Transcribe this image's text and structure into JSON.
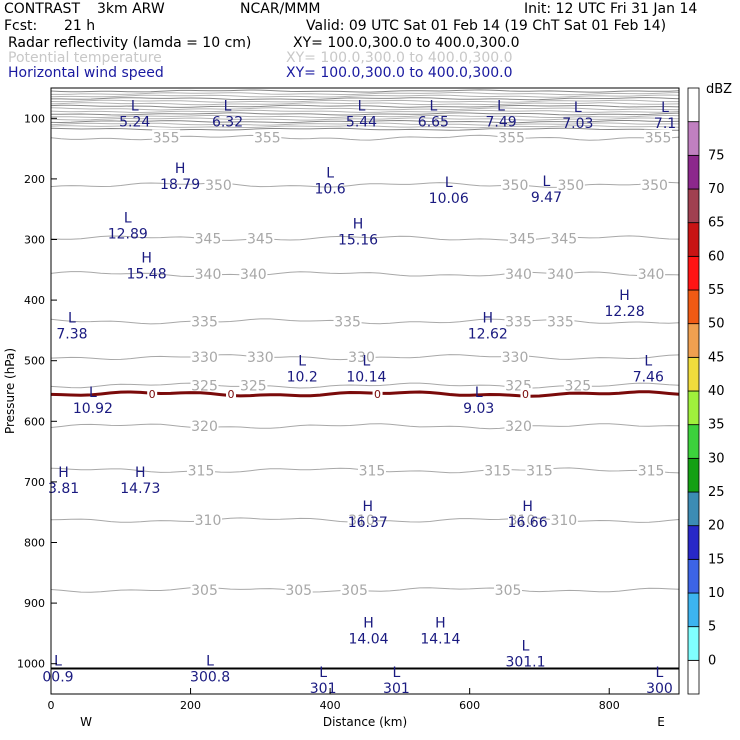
{
  "header": {
    "model": "CONTRAST",
    "config": "3km ARW",
    "org": "NCAR/MMM",
    "init_text": "Init: 12 UTC Fri 31 Jan 14",
    "fcst_label": "Fcst:",
    "fcst_value": "21 h",
    "valid_text": "Valid: 09 UTC Sat 01 Feb 14 (19 ChT Sat 01 Feb 14)",
    "fields": [
      {
        "name": "Radar reflectivity (lamda = 10 cm)",
        "xy": "XY= 100.0,300.0 to 400.0,300.0"
      },
      {
        "name": "Potential temperature",
        "xy": "XY= 100.0,300.0 to 400.0,300.0"
      },
      {
        "name": "Horizontal wind speed",
        "xy": "XY= 100.0,300.0 to 400.0,300.0"
      }
    ]
  },
  "colors": {
    "theta": "#a8a8a8",
    "wind": "#1a1a80",
    "freezing": "#7a0a0a",
    "surface": "#000000"
  },
  "chart_data": {
    "type": "cross-section",
    "xlabel": "Distance (km)",
    "ylabel": "Pressure (hPa)",
    "xlim": [
      0,
      900
    ],
    "ylim": [
      1050,
      50
    ],
    "x_ticks": [
      0,
      200,
      400,
      600,
      800
    ],
    "x_tick_labels": [
      "0",
      "200",
      "400",
      "600",
      "800"
    ],
    "y_ticks": [
      100,
      200,
      300,
      400,
      500,
      600,
      700,
      800,
      900,
      1000
    ],
    "y_tick_labels": [
      "100",
      "200",
      "300",
      "400",
      "500",
      "600",
      "700",
      "800",
      "900",
      "1000"
    ],
    "direction_labels": {
      "left": "W",
      "right": "E"
    },
    "colorbar": {
      "unit": "dBZ",
      "levels": [
        "0",
        "5",
        "10",
        "15",
        "20",
        "25",
        "30",
        "35",
        "40",
        "45",
        "50",
        "55",
        "60",
        "65",
        "70",
        "75"
      ],
      "colors": [
        "#ffffff",
        "#80ffff",
        "#3cb4f0",
        "#3c64e6",
        "#2828c8",
        "#3c8cb4",
        "#14a014",
        "#3cd23c",
        "#a0f03c",
        "#f0dc3c",
        "#f0a050",
        "#f05a14",
        "#ff1414",
        "#c81414",
        "#a04050",
        "#8c288c",
        "#c080c0",
        "#ffffff"
      ]
    },
    "theta_contours": [
      {
        "value": 355,
        "p": 132,
        "labels": [
          {
            "text": "355",
            "x": 165
          },
          {
            "text": "355",
            "x": 310
          },
          {
            "text": "355",
            "x": 660
          },
          {
            "text": "355",
            "x": 870
          }
        ]
      },
      {
        "value": 350,
        "p": 210,
        "labels": [
          {
            "text": "350",
            "x": 240
          },
          {
            "text": "350",
            "x": 665
          },
          {
            "text": "350",
            "x": 745
          },
          {
            "text": "350",
            "x": 865
          }
        ]
      },
      {
        "value": 345,
        "p": 298,
        "labels": [
          {
            "text": "345",
            "x": 225
          },
          {
            "text": "345",
            "x": 300
          },
          {
            "text": "345",
            "x": 675
          },
          {
            "text": "345",
            "x": 735
          }
        ]
      },
      {
        "value": 340,
        "p": 357,
        "labels": [
          {
            "text": "340",
            "x": 225
          },
          {
            "text": "340",
            "x": 290
          },
          {
            "text": "340",
            "x": 670
          },
          {
            "text": "340",
            "x": 730
          },
          {
            "text": "340",
            "x": 860
          }
        ]
      },
      {
        "value": 335,
        "p": 435,
        "labels": [
          {
            "text": "335",
            "x": 220
          },
          {
            "text": "335",
            "x": 425
          },
          {
            "text": "335",
            "x": 670
          },
          {
            "text": "335",
            "x": 730
          }
        ]
      },
      {
        "value": 330,
        "p": 494,
        "labels": [
          {
            "text": "330",
            "x": 220
          },
          {
            "text": "330",
            "x": 300
          },
          {
            "text": "330",
            "x": 445
          },
          {
            "text": "330",
            "x": 665
          }
        ]
      },
      {
        "value": 325,
        "p": 541,
        "labels": [
          {
            "text": "325",
            "x": 220
          },
          {
            "text": "325",
            "x": 290
          },
          {
            "text": "325",
            "x": 670
          },
          {
            "text": "325",
            "x": 755
          }
        ]
      },
      {
        "value": 320,
        "p": 608,
        "labels": [
          {
            "text": "320",
            "x": 220
          },
          {
            "text": "320",
            "x": 670
          }
        ]
      },
      {
        "value": 315,
        "p": 681,
        "labels": [
          {
            "text": "315",
            "x": 215
          },
          {
            "text": "315",
            "x": 460
          },
          {
            "text": "315",
            "x": 640
          },
          {
            "text": "315",
            "x": 700
          },
          {
            "text": "315",
            "x": 860
          }
        ]
      },
      {
        "value": 310,
        "p": 763,
        "labels": [
          {
            "text": "310",
            "x": 225
          },
          {
            "text": "310",
            "x": 445
          },
          {
            "text": "310",
            "x": 675
          },
          {
            "text": "310",
            "x": 735
          }
        ]
      },
      {
        "value": 305,
        "p": 878,
        "labels": [
          {
            "text": "305",
            "x": 220
          },
          {
            "text": "305",
            "x": 355
          },
          {
            "text": "305",
            "x": 435
          },
          {
            "text": "305",
            "x": 655
          }
        ]
      }
    ],
    "freezing_level": {
      "value": "0",
      "p": 555,
      "labels": [
        {
          "text": "0",
          "x": 145
        },
        {
          "text": "0",
          "x": 258
        },
        {
          "text": "0",
          "x": 468
        },
        {
          "text": "0",
          "x": 680
        }
      ]
    },
    "surface_p": 1008,
    "extrema": [
      {
        "type": "L",
        "value": "5.24",
        "x": 120,
        "p": 87
      },
      {
        "type": "L",
        "value": "6.32",
        "x": 253,
        "p": 87
      },
      {
        "type": "L",
        "value": "5.44",
        "x": 445,
        "p": 87
      },
      {
        "type": "L",
        "value": "6.65",
        "x": 548,
        "p": 87
      },
      {
        "type": "L",
        "value": "7.49",
        "x": 645,
        "p": 87
      },
      {
        "type": "L",
        "value": "7.03",
        "x": 755,
        "p": 90
      },
      {
        "type": "L",
        "value": "7.1",
        "x": 880,
        "p": 90
      },
      {
        "type": "H",
        "value": "18.79",
        "x": 185,
        "p": 190
      },
      {
        "type": "L",
        "value": "10.6",
        "x": 400,
        "p": 198
      },
      {
        "type": "L",
        "value": "10.06",
        "x": 570,
        "p": 213
      },
      {
        "type": "L",
        "value": "9.47",
        "x": 710,
        "p": 212
      },
      {
        "type": "L",
        "value": "12.89",
        "x": 110,
        "p": 272
      },
      {
        "type": "H",
        "value": "15.16",
        "x": 440,
        "p": 282
      },
      {
        "type": "H",
        "value": "15.48",
        "x": 137,
        "p": 338
      },
      {
        "type": "H",
        "value": "12.28",
        "x": 822,
        "p": 400
      },
      {
        "type": "L",
        "value": "7.38",
        "x": 30,
        "p": 437
      },
      {
        "type": "H",
        "value": "12.62",
        "x": 626,
        "p": 437
      },
      {
        "type": "L",
        "value": "10.2",
        "x": 360,
        "p": 508
      },
      {
        "type": "L",
        "value": "10.14",
        "x": 452,
        "p": 508
      },
      {
        "type": "L",
        "value": "7.46",
        "x": 856,
        "p": 508
      },
      {
        "type": "L",
        "value": "10.92",
        "x": 60,
        "p": 560
      },
      {
        "type": "L",
        "value": "9.03",
        "x": 613,
        "p": 560
      },
      {
        "type": "H",
        "value": "3.81",
        "x": 18,
        "p": 692
      },
      {
        "type": "H",
        "value": "14.73",
        "x": 128,
        "p": 692
      },
      {
        "type": "H",
        "value": "16.37",
        "x": 454,
        "p": 748
      },
      {
        "type": "H",
        "value": "16.66",
        "x": 683,
        "p": 748
      },
      {
        "type": "H",
        "value": "14.04",
        "x": 455,
        "p": 940
      },
      {
        "type": "H",
        "value": "14.14",
        "x": 558,
        "p": 940
      },
      {
        "type": "L",
        "value": "301.1",
        "x": 680,
        "p": 978
      },
      {
        "type": "L",
        "value": "300.8",
        "x": 228,
        "p": 1003
      },
      {
        "type": "L",
        "value": "00.9",
        "x": 10,
        "p": 1003
      },
      {
        "type": "L",
        "value": "301",
        "x": 390,
        "p": 1022
      },
      {
        "type": "L",
        "value": "301",
        "x": 495,
        "p": 1022
      },
      {
        "type": "L",
        "value": "300",
        "x": 872,
        "p": 1022
      }
    ]
  }
}
